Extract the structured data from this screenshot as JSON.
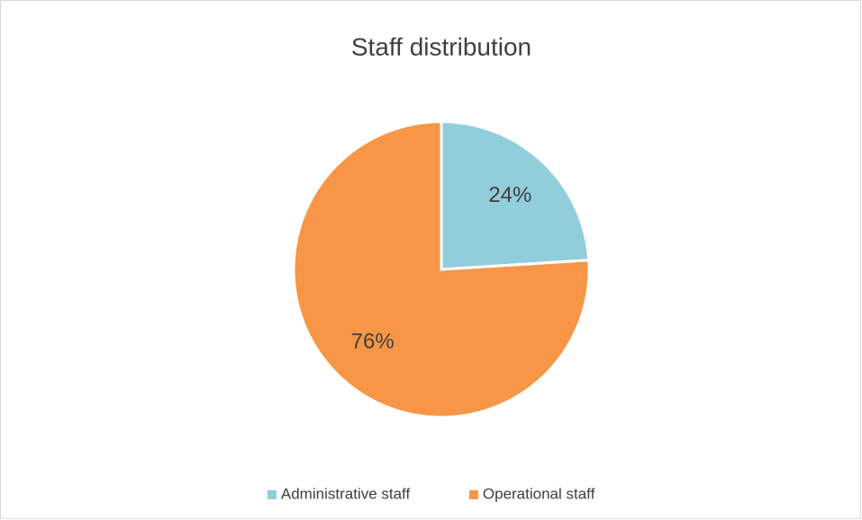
{
  "chart_data": {
    "type": "pie",
    "title": "Staff distribution",
    "categories": [
      "Administrative staff",
      "Operational staff"
    ],
    "values": [
      24,
      76
    ],
    "value_labels": [
      "24%",
      "76%"
    ],
    "colors": [
      "#92cddc",
      "#f79646"
    ],
    "legend": "bottom"
  }
}
